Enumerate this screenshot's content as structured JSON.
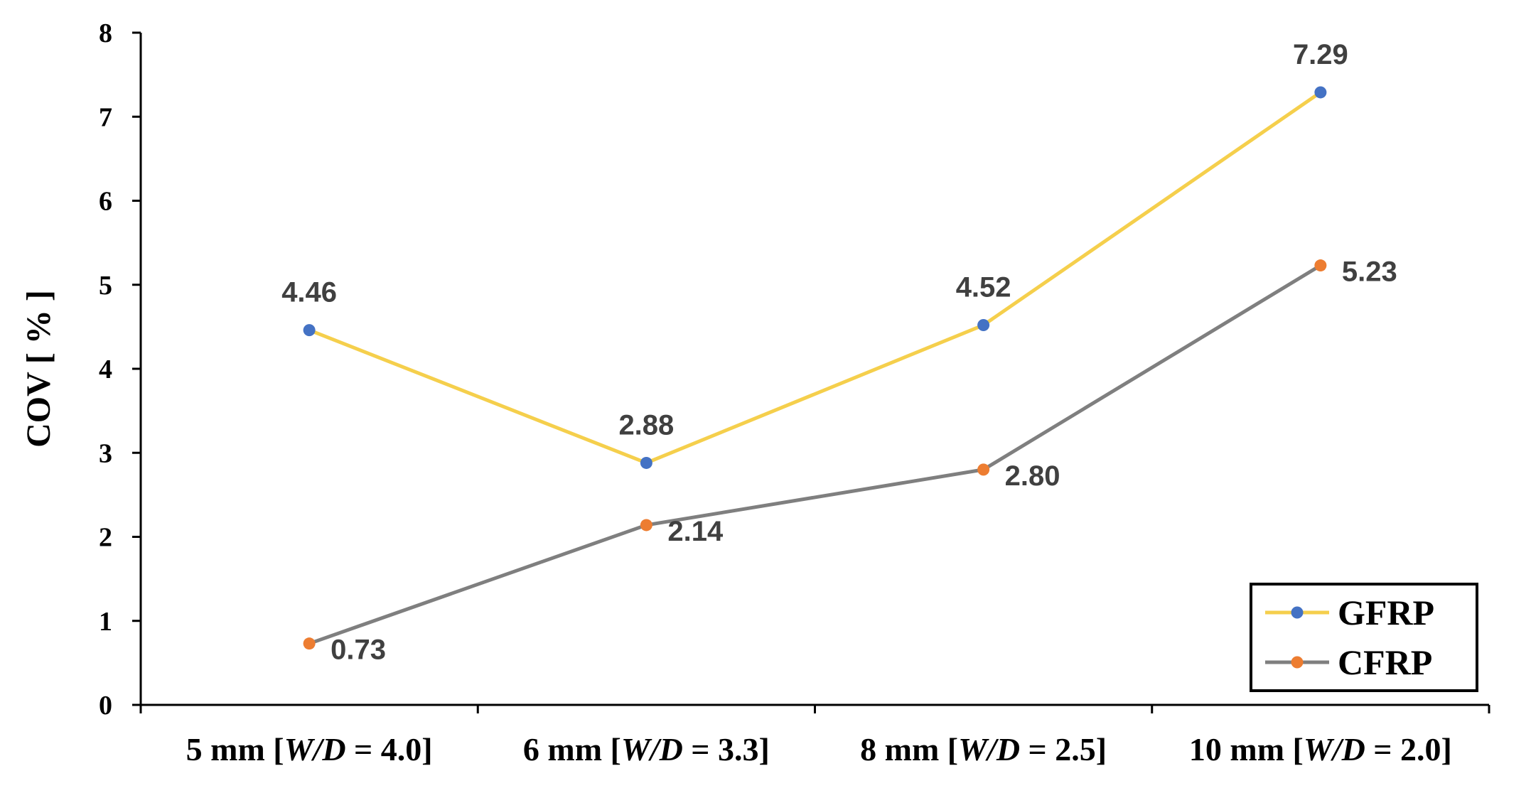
{
  "chart_data": {
    "type": "line",
    "ylabel": "COV [ % ]",
    "xlabel": "",
    "ylim": [
      0,
      8
    ],
    "yticks": [
      "0",
      "1",
      "2",
      "3",
      "4",
      "5",
      "6",
      "7",
      "8"
    ],
    "categories": [
      {
        "prefix": "5 mm [",
        "w": "W",
        "slash": "/",
        "d": "D",
        "suffix": " = 4.0]"
      },
      {
        "prefix": "6 mm [",
        "w": "W",
        "slash": "/",
        "d": "D",
        "suffix": " = 3.3]"
      },
      {
        "prefix": "8 mm [",
        "w": "W",
        "slash": "/",
        "d": "D",
        "suffix": " = 2.5]"
      },
      {
        "prefix": "10 mm [",
        "w": "W",
        "slash": "/",
        "d": "D",
        "suffix": " = 2.0]"
      }
    ],
    "series": [
      {
        "name": "GFRP",
        "values": [
          4.46,
          2.88,
          4.52,
          7.29
        ],
        "labels": [
          "4.46",
          "2.88",
          "4.52",
          "7.29"
        ],
        "line_color": "#F5CF4C",
        "marker_color": "#4472C4",
        "label_position": "above"
      },
      {
        "name": "CFRP",
        "values": [
          0.73,
          2.14,
          2.8,
          5.23
        ],
        "labels": [
          "0.73",
          "2.14",
          "2.80",
          "5.23"
        ],
        "line_color": "#7F7F7F",
        "marker_color": "#ED7D31",
        "label_position": "right"
      }
    ],
    "legend": {
      "position": "bottom-right",
      "entries": [
        "GFRP",
        "CFRP"
      ]
    },
    "grid": false
  }
}
